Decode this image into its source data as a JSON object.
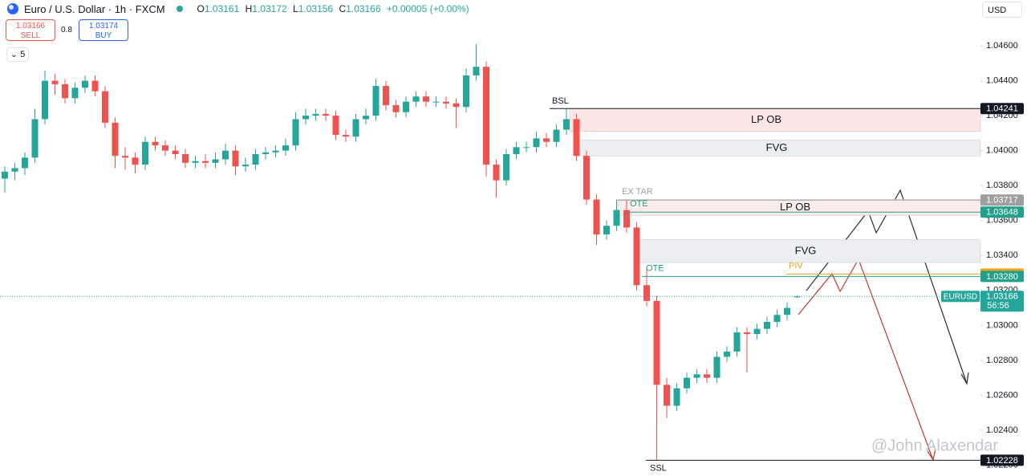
{
  "header": {
    "symbol": "Euro / U.S. Dollar · 1h · FXCM",
    "o": "O",
    "h": "H",
    "l": "L",
    "c": "C",
    "change": "+0.00005 (+0.00%)",
    "sell_price": "1.03166",
    "sell": "SELL",
    "spread": "0.8",
    "buy_price": "1.03174",
    "buy": "BUY",
    "indicators": "5",
    "currency": "USD"
  },
  "chart_data": {
    "type": "candlestick",
    "up_color": "#26a69a",
    "down_color": "#ef5350",
    "ohlc": [
      [
        1.0384,
        1.0391,
        1.0376,
        1.0388
      ],
      [
        1.0388,
        1.0393,
        1.0383,
        1.039
      ],
      [
        1.039,
        1.0399,
        1.0386,
        1.0396
      ],
      [
        1.0396,
        1.0424,
        1.0393,
        1.0418
      ],
      [
        1.0418,
        1.0446,
        1.0415,
        1.044
      ],
      [
        1.044,
        1.0444,
        1.0432,
        1.0438
      ],
      [
        1.0438,
        1.0441,
        1.0427,
        1.043
      ],
      [
        1.043,
        1.0439,
        1.0427,
        1.0436
      ],
      [
        1.0436,
        1.0443,
        1.0433,
        1.044
      ],
      [
        1.044,
        1.0443,
        1.0431,
        1.0434
      ],
      [
        1.0434,
        1.0437,
        1.0413,
        1.0416
      ],
      [
        1.0416,
        1.0419,
        1.039,
        1.0397
      ],
      [
        1.0397,
        1.0402,
        1.0389,
        1.0396
      ],
      [
        1.0396,
        1.0399,
        1.0387,
        1.0392
      ],
      [
        1.0392,
        1.0408,
        1.0389,
        1.0405
      ],
      [
        1.0405,
        1.0408,
        1.04,
        1.0403
      ],
      [
        1.0403,
        1.0406,
        1.0397,
        1.04
      ],
      [
        1.04,
        1.0403,
        1.0395,
        1.0398
      ],
      [
        1.0398,
        1.0401,
        1.039,
        1.0393
      ],
      [
        1.0393,
        1.0397,
        1.039,
        1.0394
      ],
      [
        1.0394,
        1.0398,
        1.039,
        1.0393
      ],
      [
        1.0393,
        1.0399,
        1.039,
        1.0395
      ],
      [
        1.0395,
        1.0404,
        1.0392,
        1.04
      ],
      [
        1.04,
        1.0403,
        1.0386,
        1.0391
      ],
      [
        1.0391,
        1.0396,
        1.0388,
        1.0392
      ],
      [
        1.0392,
        1.0401,
        1.0389,
        1.0398
      ],
      [
        1.0398,
        1.0402,
        1.0395,
        1.0399
      ],
      [
        1.0399,
        1.0403,
        1.0396,
        1.04
      ],
      [
        1.04,
        1.0407,
        1.0397,
        1.0403
      ],
      [
        1.0403,
        1.0422,
        1.04,
        1.0418
      ],
      [
        1.0418,
        1.0424,
        1.0415,
        1.042
      ],
      [
        1.042,
        1.0424,
        1.0417,
        1.0421
      ],
      [
        1.0421,
        1.0424,
        1.0417,
        1.042
      ],
      [
        1.042,
        1.0423,
        1.0406,
        1.0409
      ],
      [
        1.0409,
        1.0412,
        1.0405,
        1.0408
      ],
      [
        1.0408,
        1.0421,
        1.0405,
        1.0418
      ],
      [
        1.0418,
        1.0424,
        1.0415,
        1.042
      ],
      [
        1.042,
        1.0441,
        1.0417,
        1.0437
      ],
      [
        1.0437,
        1.044,
        1.0423,
        1.0426
      ],
      [
        1.0426,
        1.0429,
        1.0419,
        1.0422
      ],
      [
        1.0422,
        1.0431,
        1.0419,
        1.0428
      ],
      [
        1.0428,
        1.0434,
        1.0425,
        1.0431
      ],
      [
        1.0431,
        1.0434,
        1.0425,
        1.0428
      ],
      [
        1.0428,
        1.0431,
        1.0425,
        1.0428
      ],
      [
        1.0428,
        1.0431,
        1.0424,
        1.0427
      ],
      [
        1.0427,
        1.043,
        1.0413,
        1.0425
      ],
      [
        1.0425,
        1.0447,
        1.0422,
        1.0443
      ],
      [
        1.0443,
        1.0461,
        1.044,
        1.0448
      ],
      [
        1.0448,
        1.0451,
        1.0385,
        1.0392
      ],
      [
        1.0392,
        1.0395,
        1.0373,
        1.0383
      ],
      [
        1.0383,
        1.0401,
        1.038,
        1.0398
      ],
      [
        1.0398,
        1.0405,
        1.0395,
        1.0402
      ],
      [
        1.0402,
        1.0405,
        1.0399,
        1.0402
      ],
      [
        1.0402,
        1.0411,
        1.0399,
        1.0407
      ],
      [
        1.0407,
        1.041,
        1.0402,
        1.0405
      ],
      [
        1.0405,
        1.0415,
        1.0402,
        1.0412
      ],
      [
        1.0412,
        1.0424,
        1.0409,
        1.0418
      ],
      [
        1.0418,
        1.0421,
        1.0394,
        1.0397
      ],
      [
        1.0397,
        1.04,
        1.0369,
        1.0372
      ],
      [
        1.0372,
        1.0375,
        1.0346,
        1.0352
      ],
      [
        1.0352,
        1.036,
        1.0349,
        1.0357
      ],
      [
        1.0357,
        1.0372,
        1.0354,
        1.0366
      ],
      [
        1.0366,
        1.0372,
        1.0353,
        1.0356
      ],
      [
        1.0356,
        1.0359,
        1.032,
        1.0323
      ],
      [
        1.0323,
        1.0332,
        1.0311,
        1.0314
      ],
      [
        1.0314,
        1.0317,
        1.0223,
        1.0266
      ],
      [
        1.0266,
        1.027,
        1.0247,
        1.0254
      ],
      [
        1.0254,
        1.0267,
        1.0251,
        1.0264
      ],
      [
        1.0264,
        1.0273,
        1.0261,
        1.027
      ],
      [
        1.027,
        1.0275,
        1.0267,
        1.0272
      ],
      [
        1.0272,
        1.0275,
        1.0267,
        1.027
      ],
      [
        1.027,
        1.0285,
        1.0267,
        1.0282
      ],
      [
        1.0282,
        1.0288,
        1.0279,
        1.0285
      ],
      [
        1.0285,
        1.0299,
        1.0282,
        1.0296
      ],
      [
        1.0296,
        1.0299,
        1.0273,
        1.0295
      ],
      [
        1.0295,
        1.0301,
        1.0292,
        1.0298
      ],
      [
        1.0298,
        1.0305,
        1.0295,
        1.0302
      ],
      [
        1.0302,
        1.0309,
        1.0299,
        1.0306
      ],
      [
        1.0306,
        1.0313,
        1.0303,
        1.031
      ],
      [
        1.03161,
        1.03172,
        1.03156,
        1.03166
      ]
    ],
    "ylim": [
      1.02138,
      1.04862
    ],
    "yticks": [
      {
        "value": 1.046,
        "label": "1.04600"
      },
      {
        "value": 1.044,
        "label": "1.04400"
      },
      {
        "value": 1.042,
        "label": "1.04200"
      },
      {
        "value": 1.04,
        "label": "1.04000"
      },
      {
        "value": 1.038,
        "label": "1.03800"
      },
      {
        "value": 1.036,
        "label": "1.03600"
      },
      {
        "value": 1.034,
        "label": "1.03400"
      },
      {
        "value": 1.032,
        "label": "1.03200"
      },
      {
        "value": 1.03,
        "label": "1.03000"
      },
      {
        "value": 1.028,
        "label": "1.02800"
      },
      {
        "value": 1.026,
        "label": "1.02600"
      },
      {
        "value": 1.024,
        "label": "1.02400"
      },
      {
        "value": 1.022,
        "label": "1.02200"
      }
    ],
    "levels": [
      {
        "name": "BSL",
        "value": 1.04241,
        "color": "#131722"
      },
      {
        "name": "EX TAR",
        "value": 1.03717,
        "color": "#9e9e9e"
      },
      {
        "name": "OTE",
        "value": 1.03648,
        "color": "#22a08a"
      },
      {
        "name": "PIV",
        "value": 1.03294,
        "color": "#f7a21b"
      },
      {
        "name": "OTE",
        "value": 1.0328,
        "value_label": "1.03280",
        "color": "#22a08a"
      },
      {
        "name": "SSL",
        "value": 1.02228,
        "color": "#131722"
      }
    ],
    "zones": [
      {
        "name": "LP OB",
        "top": 1.0424,
        "bottom": 1.0411,
        "color": "#fde6e6"
      },
      {
        "name": "FVG",
        "top": 1.0406,
        "bottom": 1.0397,
        "color": "#eceef1"
      },
      {
        "name": "LP OB",
        "top": 1.0372,
        "bottom": 1.0363,
        "color": "#fdecec"
      },
      {
        "name": "FVG",
        "top": 1.0349,
        "bottom": 1.0336,
        "color": "#eceef1"
      }
    ],
    "current": {
      "symbol": "EURUSD",
      "countdown": "56:56"
    }
  },
  "watermark": "@John Alaxendar"
}
